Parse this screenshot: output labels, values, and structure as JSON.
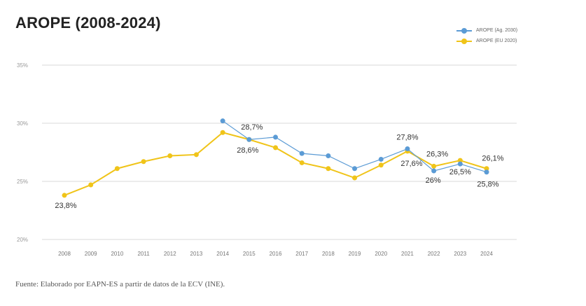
{
  "title": "AROPE (2008-2024)",
  "footer": "Fuente: Elaborado por EAPN-ES a partir de datos de la ECV (INE).",
  "colors": {
    "blue": "#5b9bd5",
    "yellow": "#f0c419",
    "grid": "#d9d9d9",
    "axis_text": "#999999",
    "label_text": "#333333"
  },
  "chart_data": {
    "type": "line",
    "title": "AROPE (2008-2024)",
    "xlabel": "",
    "ylabel": "",
    "ylim": [
      20,
      35
    ],
    "yticks": [
      "20%",
      "25%",
      "30%",
      "35%"
    ],
    "grid": true,
    "legend_position": "top-right",
    "x": [
      "2008",
      "2009",
      "2010",
      "2011",
      "2012",
      "2013",
      "2014",
      "2015",
      "2016",
      "2017",
      "2018",
      "2019",
      "2020",
      "2021",
      "2022",
      "2023",
      "2024"
    ],
    "series": [
      {
        "name": "AROPE (Ag. 2030)",
        "color": "#5b9bd5",
        "values": [
          null,
          null,
          null,
          null,
          null,
          null,
          30.2,
          28.6,
          28.8,
          27.4,
          27.2,
          26.1,
          26.9,
          27.8,
          25.9,
          26.5,
          25.8
        ]
      },
      {
        "name": "AROPE (EU 2020)",
        "color": "#f0c419",
        "values": [
          23.8,
          24.7,
          26.1,
          26.7,
          27.2,
          27.3,
          29.2,
          28.6,
          27.9,
          26.6,
          26.1,
          25.3,
          26.4,
          27.6,
          26.3,
          26.8,
          26.1
        ]
      }
    ],
    "annotations": [
      "23,8%",
      "28,7%",
      "28,6%",
      "27,8%",
      "27,6%",
      "26,3%",
      "26%",
      "26,5%",
      "26,1%",
      "25,8%"
    ]
  }
}
